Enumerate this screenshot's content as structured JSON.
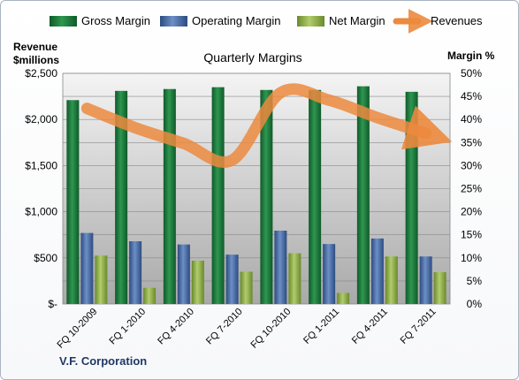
{
  "chart_data": {
    "type": "bar",
    "title": "Quarterly Margins",
    "company": "V.F. Corporation",
    "ylabel_left": [
      "Revenue",
      "$millions"
    ],
    "ylabel_right": "Margin %",
    "ylim_left": [
      0,
      2500
    ],
    "ylim_right": [
      0,
      50
    ],
    "yticks_left": [
      "$-",
      "$500",
      "$1,000",
      "$1,500",
      "$2,000",
      "$2,500"
    ],
    "yticks_right": [
      "0%",
      "5%",
      "10%",
      "15%",
      "20%",
      "25%",
      "30%",
      "35%",
      "40%",
      "45%",
      "50%"
    ],
    "grid": true,
    "legend_position": "top",
    "categories": [
      "FQ 10-2009",
      "FQ 1-2010",
      "FQ 4-2010",
      "FQ 7-2010",
      "FQ 10-2010",
      "FQ 1-2011",
      "FQ 4-2011",
      "FQ 7-2011"
    ],
    "series": [
      {
        "name": "Gross Margin",
        "type": "bar",
        "axis": "right",
        "color": "#1f7a3c",
        "values": [
          44.2,
          46.2,
          46.6,
          47.0,
          46.4,
          46.4,
          47.2,
          46.0
        ]
      },
      {
        "name": "Operating Margin",
        "type": "bar",
        "axis": "right",
        "color": "#4a6fa8",
        "values": [
          15.4,
          13.6,
          12.9,
          10.7,
          15.9,
          13.0,
          14.2,
          10.3
        ]
      },
      {
        "name": "Net Margin",
        "type": "bar",
        "axis": "right",
        "color": "#8fae45",
        "values": [
          10.5,
          3.5,
          9.4,
          7.0,
          11.0,
          2.4,
          10.3,
          6.9
        ]
      },
      {
        "name": "Revenues",
        "type": "line",
        "axis": "left",
        "color": "#ec8a3e",
        "values": [
          2120,
          1910,
          1740,
          1560,
          2290,
          2210,
          2020,
          1850
        ]
      }
    ]
  }
}
